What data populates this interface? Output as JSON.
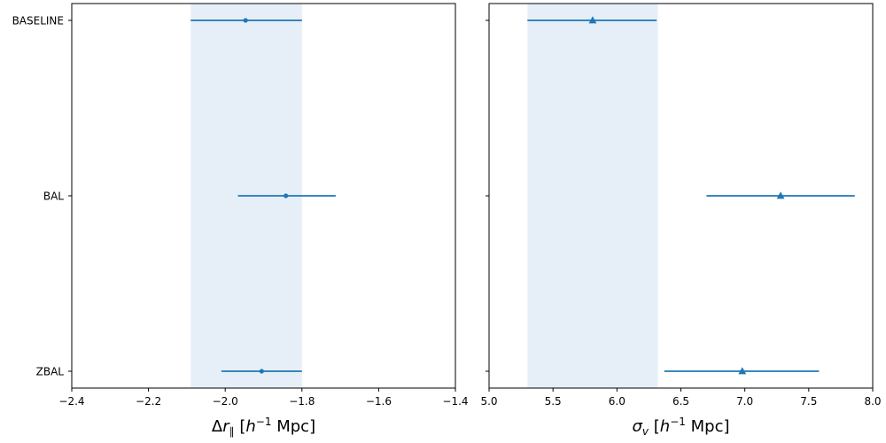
{
  "chart_data": [
    {
      "type": "errorbar",
      "marker": "circle",
      "categories": [
        "BASELINE",
        "BAL",
        "ZBAL"
      ],
      "values": [
        -1.947,
        -1.842,
        -1.905
      ],
      "err_low": [
        -2.09,
        -1.967,
        -2.01
      ],
      "err_high": [
        -1.8,
        -1.712,
        -1.8
      ],
      "band": [
        -2.09,
        -1.8
      ],
      "xlim": [
        -2.4,
        -1.4
      ],
      "xticks": [
        -2.4,
        -2.2,
        -2.0,
        -1.8,
        -1.6,
        -1.4
      ],
      "xtick_labels": [
        "−2.4",
        "−2.2",
        "−2.0",
        "−1.8",
        "−1.6",
        "−1.4"
      ],
      "xlabel_parts": [
        "Δ",
        "r",
        "∥",
        " [",
        "h",
        "−1",
        " Mpc]"
      ],
      "ylabels_visible": true
    },
    {
      "type": "errorbar",
      "marker": "triangle",
      "categories": [
        "BASELINE",
        "BAL",
        "ZBAL"
      ],
      "values": [
        5.81,
        7.28,
        6.98
      ],
      "err_low": [
        5.3,
        6.7,
        6.37
      ],
      "err_high": [
        6.31,
        7.86,
        7.58
      ],
      "band": [
        5.3,
        6.32
      ],
      "xlim": [
        5.0,
        8.0
      ],
      "xticks": [
        5.0,
        5.5,
        6.0,
        6.5,
        7.0,
        7.5,
        8.0
      ],
      "xtick_labels": [
        "5.0",
        "5.5",
        "6.0",
        "6.5",
        "7.0",
        "7.5",
        "8.0"
      ],
      "xlabel_parts": [
        "σ",
        "v",
        " [",
        "h",
        "−1",
        " Mpc]"
      ],
      "ylabels_visible": false
    }
  ],
  "colors": {
    "series": "#1f77b4",
    "band": "#e6eff8",
    "axes": "#000000"
  }
}
